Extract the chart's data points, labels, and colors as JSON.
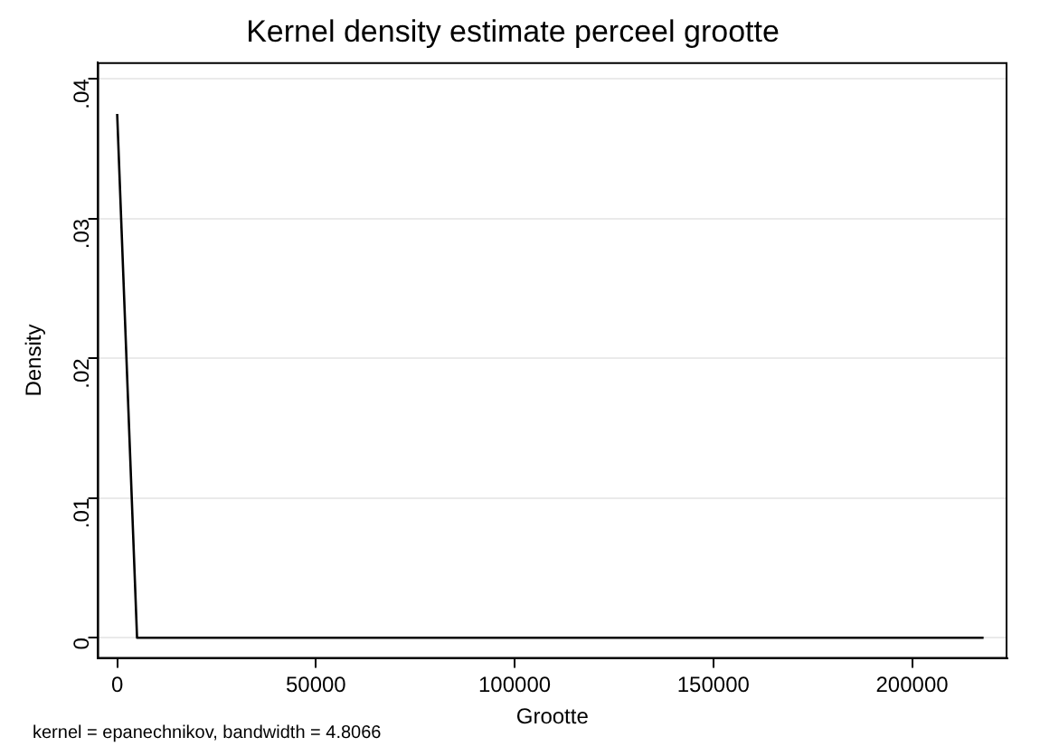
{
  "chart_data": {
    "type": "line",
    "title": "Kernel density estimate perceel grootte",
    "xlabel": "Grootte",
    "ylabel": "Density",
    "annotations": [
      "kernel = epanechnikov, bandwidth = 4.8066"
    ],
    "series": [
      {
        "color": "#000000",
        "x": [
          0,
          5000,
          218000
        ],
        "values": [
          0.0375,
          0,
          0
        ]
      }
    ],
    "xlim": [
      -5000,
      224000
    ],
    "xticks": [
      0,
      50000,
      100000,
      150000,
      200000
    ],
    "ylim": [
      -0.0015,
      0.0412
    ],
    "yticks": [
      0,
      {
        "value": 0.01,
        "label": ".01"
      },
      {
        "value": 0.02,
        "label": ".02"
      },
      {
        "value": 0.03,
        "label": ".03"
      },
      {
        "value": 0.04,
        "label": ".04"
      }
    ],
    "grid": "y",
    "legend": false,
    "marker": "none",
    "line_style": "solid"
  }
}
